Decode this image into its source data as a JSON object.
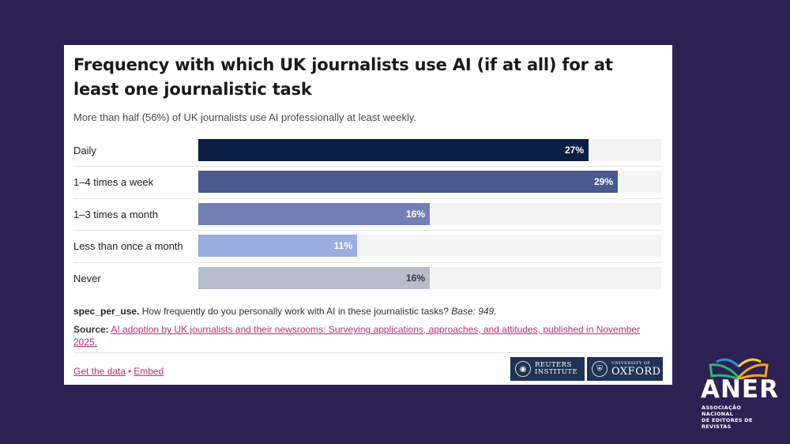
{
  "chart_data": {
    "type": "bar",
    "orientation": "horizontal",
    "title": "Frequency with which UK journalists use AI (if at all) for at least one journalistic task",
    "subtitle": "More than half (56%) of UK journalists use AI professionally at least weekly.",
    "categories": [
      "Daily",
      "1–4 times a week",
      "1–3 times a month",
      "Less than once a month",
      "Never"
    ],
    "values": [
      27,
      29,
      16,
      11,
      16
    ],
    "value_labels": [
      "27%",
      "29%",
      "16%",
      "11%",
      "16%"
    ],
    "colors": [
      "#0b1e45",
      "#4a5a8f",
      "#7380b6",
      "#9aaee0",
      "#b7bcc9"
    ],
    "xlim": [
      0,
      32
    ],
    "unit": "%"
  },
  "note": {
    "code": "spec_per_use.",
    "question": " How frequently do you personally work with AI in these journalistic tasks? ",
    "base": "Base: 949."
  },
  "source": {
    "label": "Source:",
    "link_text": "AI adoption by UK journalists and their newsrooms: Surveying applications, approaches, and attitudes, published in November 2025."
  },
  "links": {
    "get_data": "Get the data",
    "separator": "•",
    "embed": "Embed"
  },
  "logos": {
    "reuters_line1": "REUTERS",
    "reuters_line2": "INSTITUTE",
    "oxford_small": "UNIVERSITY OF",
    "oxford_big": "OXFORD"
  },
  "aner": {
    "word": "ANER",
    "sub_line1": "ASSOCIAÇÃO NACIONAL",
    "sub_line2": "DE EDITORES DE REVISTAS"
  }
}
